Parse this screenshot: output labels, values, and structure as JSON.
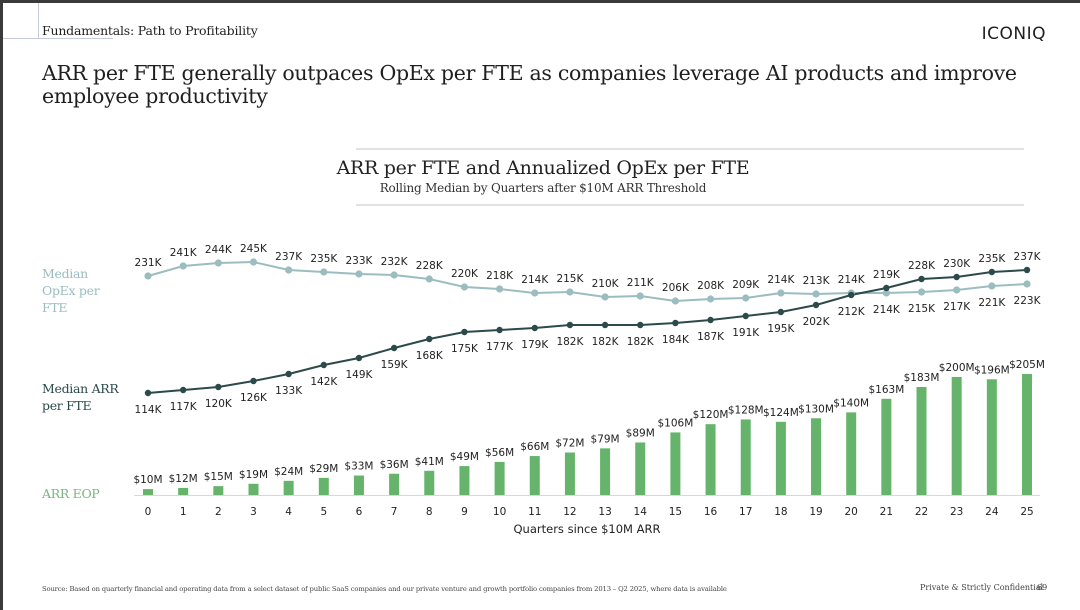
{
  "header": {
    "section": "Fundamentals: Path to Profitability",
    "brand": "ICONIQ",
    "headline": "ARR per FTE generally outpaces OpEx per FTE as companies leverage AI products and improve employee productivity"
  },
  "series_labels": {
    "opex": "Median OpEx per FTE",
    "arr_fte": "Median ARR per FTE",
    "arr_eop": "ARR EOP"
  },
  "footer": {
    "source": "Source: Based on quarterly financial and operating data from a select dataset of public SaaS companies and our private venture and growth portfolio companies from 2013 – Q2 2025, where data is available",
    "confidential": "Private & Strictly Confidential",
    "page": "69"
  },
  "colors": {
    "opex": "#9bbdc0",
    "arr_fte": "#2c4a4a",
    "arr_eop": "#66b36b",
    "text": "#222222"
  },
  "chart_data": {
    "type": "line",
    "title": "ARR per FTE and Annualized OpEx per FTE",
    "subtitle": "Rolling Median by Quarters after $10M ARR Threshold",
    "xlabel": "Quarters since $10M ARR",
    "ylabel": "",
    "x": [
      0,
      1,
      2,
      3,
      4,
      5,
      6,
      7,
      8,
      9,
      10,
      11,
      12,
      13,
      14,
      15,
      16,
      17,
      18,
      19,
      20,
      21,
      22,
      23,
      24,
      25
    ],
    "grid": false,
    "legend": "left",
    "series": [
      {
        "name": "Median OpEx per FTE",
        "type": "line",
        "unit": "K",
        "values": [
          231,
          241,
          244,
          245,
          237,
          235,
          233,
          232,
          228,
          220,
          218,
          214,
          215,
          210,
          211,
          206,
          208,
          209,
          214,
          213,
          214,
          214,
          215,
          217,
          221,
          223
        ]
      },
      {
        "name": "Median ARR per FTE",
        "type": "line",
        "unit": "K",
        "values": [
          114,
          117,
          120,
          126,
          133,
          142,
          149,
          159,
          168,
          175,
          177,
          179,
          182,
          182,
          182,
          184,
          187,
          191,
          195,
          202,
          212,
          219,
          228,
          230,
          235,
          237
        ]
      },
      {
        "name": "ARR EOP",
        "type": "bar",
        "unit": "$M",
        "values": [
          10,
          12,
          15,
          19,
          24,
          29,
          33,
          36,
          41,
          49,
          56,
          66,
          72,
          79,
          89,
          106,
          120,
          128,
          124,
          130,
          140,
          163,
          183,
          200,
          196,
          205
        ]
      }
    ],
    "ylim": [
      100,
      250
    ]
  }
}
